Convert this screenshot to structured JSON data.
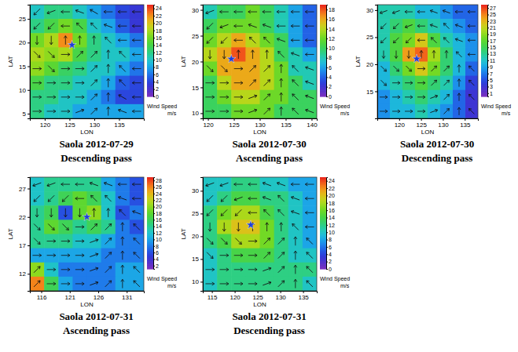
{
  "chart_data": [
    {
      "type": "heatmap",
      "title": "Saola 2012-07-29",
      "subtitle": "Descending pass",
      "x_label": "LON",
      "y_label": "LAT",
      "xlim": [
        117,
        140
      ],
      "xticks": [
        120,
        125,
        130,
        135
      ],
      "ylim": [
        4,
        28
      ],
      "yticks": [
        5,
        10,
        15,
        20,
        25
      ],
      "colorbar_title": "Wind Speed",
      "colorbar_unit": "m/s",
      "colorbar_range": [
        0,
        25
      ],
      "colorbar_ticks": [
        0,
        2,
        4,
        6,
        8,
        10,
        12,
        14,
        16,
        18,
        20,
        22,
        24
      ],
      "center": {
        "lon": 125.5,
        "lat": 19.5
      },
      "values": [
        [
          10,
          12,
          12,
          10,
          8,
          6,
          4,
          3
        ],
        [
          12,
          14,
          16,
          14,
          10,
          8,
          5,
          3
        ],
        [
          16,
          18,
          22,
          16,
          12,
          10,
          8,
          6
        ],
        [
          18,
          17,
          18,
          14,
          12,
          10,
          10,
          8
        ],
        [
          17,
          15,
          13,
          12,
          10,
          10,
          8,
          6
        ],
        [
          14,
          12,
          12,
          10,
          10,
          8,
          5,
          4
        ],
        [
          12,
          12,
          10,
          10,
          8,
          6,
          4,
          4
        ],
        [
          12,
          10,
          10,
          8,
          8,
          8,
          8,
          8
        ]
      ],
      "directions": [
        [
          225,
          200,
          180,
          160,
          150,
          180,
          180,
          180
        ],
        [
          225,
          225,
          180,
          135,
          135,
          160,
          180,
          180
        ],
        [
          270,
          270,
          90,
          90,
          90,
          135,
          180,
          180
        ],
        [
          315,
          315,
          0,
          45,
          45,
          90,
          135,
          180
        ],
        [
          0,
          315,
          0,
          0,
          45,
          90,
          135,
          180
        ],
        [
          0,
          0,
          0,
          0,
          45,
          90,
          135,
          180
        ],
        [
          0,
          0,
          0,
          0,
          45,
          90,
          150,
          180
        ],
        [
          0,
          0,
          0,
          20,
          45,
          90,
          160,
          180
        ]
      ]
    },
    {
      "type": "heatmap",
      "title": "Saola 2012-07-30",
      "subtitle": "Ascending pass",
      "x_label": "LON",
      "y_label": "LAT",
      "xlim": [
        119,
        141
      ],
      "xticks": [
        120,
        125,
        130,
        135,
        140
      ],
      "ylim": [
        9,
        31
      ],
      "yticks": [
        10,
        15,
        20,
        25,
        30
      ],
      "colorbar_title": "Wind Speed",
      "colorbar_unit": "m/s",
      "colorbar_range": [
        0,
        19
      ],
      "colorbar_ticks": [
        0,
        2,
        4,
        6,
        8,
        10,
        12,
        14,
        16,
        18
      ],
      "center": {
        "lon": 124.5,
        "lat": 20.5
      },
      "values": [
        [
          8,
          10,
          10,
          12,
          10,
          8,
          6,
          4
        ],
        [
          10,
          12,
          12,
          12,
          10,
          8,
          6,
          4
        ],
        [
          12,
          14,
          16,
          14,
          12,
          10,
          6,
          4
        ],
        [
          14,
          16,
          18,
          16,
          14,
          10,
          8,
          6
        ],
        [
          12,
          16,
          16,
          16,
          14,
          12,
          8,
          8
        ],
        [
          10,
          14,
          16,
          16,
          14,
          12,
          10,
          8
        ],
        [
          10,
          12,
          14,
          14,
          12,
          12,
          10,
          10
        ],
        [
          10,
          10,
          12,
          12,
          12,
          10,
          10,
          10
        ]
      ],
      "directions": [
        [
          200,
          180,
          180,
          180,
          180,
          180,
          180,
          180
        ],
        [
          225,
          200,
          180,
          160,
          160,
          180,
          180,
          180
        ],
        [
          225,
          225,
          180,
          135,
          135,
          160,
          180,
          180
        ],
        [
          270,
          270,
          90,
          90,
          90,
          135,
          160,
          180
        ],
        [
          315,
          315,
          0,
          45,
          45,
          90,
          135,
          160
        ],
        [
          0,
          0,
          0,
          45,
          45,
          90,
          135,
          160
        ],
        [
          0,
          0,
          0,
          20,
          45,
          90,
          135,
          160
        ],
        [
          0,
          0,
          0,
          20,
          45,
          90,
          135,
          160
        ]
      ]
    },
    {
      "type": "heatmap",
      "title": "Saola 2012-07-30",
      "subtitle": "Descending pass",
      "x_label": "LON",
      "y_label": "LAT",
      "xlim": [
        115,
        138
      ],
      "xticks": [
        120,
        125,
        130,
        135
      ],
      "ylim": [
        10,
        31
      ],
      "yticks": [
        15,
        20,
        25,
        30
      ],
      "colorbar_title": "Wind Speed",
      "colorbar_unit": "m/s",
      "colorbar_range": [
        0,
        28
      ],
      "colorbar_ticks": [
        1,
        3,
        5,
        7,
        9,
        11,
        13,
        15,
        17,
        19,
        21,
        23,
        25,
        27
      ],
      "center": {
        "lon": 124,
        "lat": 21
      },
      "values": [
        [
          12,
          12,
          12,
          10,
          10,
          8,
          6,
          6
        ],
        [
          12,
          14,
          16,
          14,
          12,
          10,
          8,
          6
        ],
        [
          12,
          16,
          18,
          22,
          16,
          12,
          10,
          8
        ],
        [
          12,
          16,
          24,
          26,
          20,
          14,
          10,
          8
        ],
        [
          10,
          14,
          18,
          22,
          18,
          14,
          10,
          6
        ],
        [
          10,
          12,
          14,
          16,
          14,
          12,
          8,
          4
        ],
        [
          8,
          10,
          12,
          14,
          12,
          10,
          6,
          3
        ],
        [
          8,
          10,
          10,
          12,
          10,
          8,
          6,
          3
        ]
      ],
      "directions": [
        [
          200,
          200,
          180,
          180,
          160,
          160,
          180,
          180
        ],
        [
          225,
          225,
          200,
          180,
          160,
          135,
          160,
          180
        ],
        [
          225,
          225,
          225,
          180,
          135,
          135,
          160,
          180
        ],
        [
          270,
          270,
          270,
          90,
          90,
          90,
          135,
          180
        ],
        [
          315,
          315,
          315,
          0,
          45,
          45,
          90,
          135
        ],
        [
          315,
          0,
          0,
          0,
          45,
          45,
          90,
          135
        ],
        [
          0,
          0,
          0,
          0,
          20,
          45,
          90,
          135
        ],
        [
          0,
          0,
          0,
          0,
          20,
          45,
          90,
          135
        ]
      ]
    },
    {
      "type": "heatmap",
      "title": "Saola 2012-07-31",
      "subtitle": "Ascending pass",
      "x_label": "LON",
      "y_label": "LAT",
      "xlim": [
        114,
        134
      ],
      "xticks": [
        116,
        121,
        126,
        131
      ],
      "ylim": [
        9,
        29
      ],
      "yticks": [
        12,
        17,
        22,
        27
      ],
      "colorbar_title": "Wind Speed",
      "colorbar_unit": "m/s",
      "colorbar_range": [
        1,
        29
      ],
      "colorbar_ticks": [
        2,
        4,
        6,
        8,
        10,
        12,
        14,
        16,
        18,
        20,
        22,
        24,
        26,
        28
      ],
      "center": {
        "lon": 124,
        "lat": 22
      },
      "values": [
        [
          12,
          14,
          14,
          14,
          14,
          10,
          8,
          6
        ],
        [
          12,
          14,
          16,
          18,
          16,
          12,
          8,
          6
        ],
        [
          14,
          16,
          6,
          18,
          20,
          12,
          6,
          8
        ],
        [
          14,
          18,
          16,
          14,
          16,
          14,
          8,
          6
        ],
        [
          14,
          14,
          14,
          12,
          12,
          10,
          8,
          8
        ],
        [
          10,
          10,
          10,
          10,
          10,
          8,
          8,
          8
        ],
        [
          20,
          12,
          8,
          8,
          8,
          8,
          10,
          10
        ],
        [
          26,
          16,
          10,
          8,
          8,
          8,
          10,
          10
        ]
      ],
      "directions": [
        [
          200,
          200,
          180,
          180,
          160,
          160,
          180,
          180
        ],
        [
          225,
          225,
          225,
          180,
          135,
          135,
          160,
          180
        ],
        [
          270,
          270,
          270,
          270,
          90,
          90,
          135,
          160
        ],
        [
          315,
          315,
          315,
          0,
          45,
          45,
          90,
          135
        ],
        [
          315,
          0,
          0,
          0,
          20,
          45,
          90,
          135
        ],
        [
          0,
          0,
          0,
          0,
          20,
          45,
          90,
          135
        ],
        [
          45,
          0,
          0,
          0,
          20,
          45,
          90,
          135
        ],
        [
          45,
          0,
          0,
          0,
          20,
          45,
          90,
          135
        ]
      ]
    },
    {
      "type": "heatmap",
      "title": "Saola 2012-07-31",
      "subtitle": "Descending pass",
      "x_label": "LON",
      "y_label": "LAT",
      "xlim": [
        113,
        138
      ],
      "xticks": [
        115,
        120,
        125,
        130,
        135
      ],
      "ylim": [
        8,
        33
      ],
      "yticks": [
        10,
        15,
        20,
        25,
        30
      ],
      "colorbar_title": "Wind Speed",
      "colorbar_unit": "m/s",
      "colorbar_range": [
        0,
        25
      ],
      "colorbar_ticks": [
        0,
        2,
        4,
        6,
        8,
        10,
        12,
        14,
        16,
        18,
        20,
        22,
        24
      ],
      "center": {
        "lon": 123.5,
        "lat": 22.5
      },
      "values": [
        [
          10,
          10,
          12,
          12,
          10,
          10,
          8,
          8
        ],
        [
          10,
          12,
          14,
          14,
          12,
          12,
          10,
          8
        ],
        [
          12,
          16,
          18,
          18,
          14,
          12,
          10,
          8
        ],
        [
          12,
          18,
          20,
          20,
          16,
          12,
          10,
          8
        ],
        [
          12,
          14,
          18,
          18,
          16,
          12,
          10,
          8
        ],
        [
          10,
          12,
          14,
          14,
          14,
          12,
          10,
          10
        ],
        [
          10,
          12,
          12,
          12,
          12,
          12,
          12,
          12
        ],
        [
          10,
          12,
          12,
          12,
          12,
          12,
          12,
          10
        ]
      ],
      "directions": [
        [
          200,
          200,
          180,
          180,
          160,
          160,
          180,
          180
        ],
        [
          225,
          225,
          200,
          180,
          160,
          135,
          160,
          180
        ],
        [
          225,
          225,
          225,
          180,
          135,
          135,
          160,
          180
        ],
        [
          270,
          270,
          270,
          90,
          90,
          90,
          135,
          180
        ],
        [
          315,
          315,
          315,
          0,
          45,
          45,
          90,
          135
        ],
        [
          315,
          0,
          0,
          0,
          45,
          45,
          90,
          135
        ],
        [
          0,
          0,
          0,
          0,
          20,
          45,
          90,
          135
        ],
        [
          0,
          0,
          0,
          0,
          20,
          45,
          90,
          135
        ]
      ]
    }
  ]
}
